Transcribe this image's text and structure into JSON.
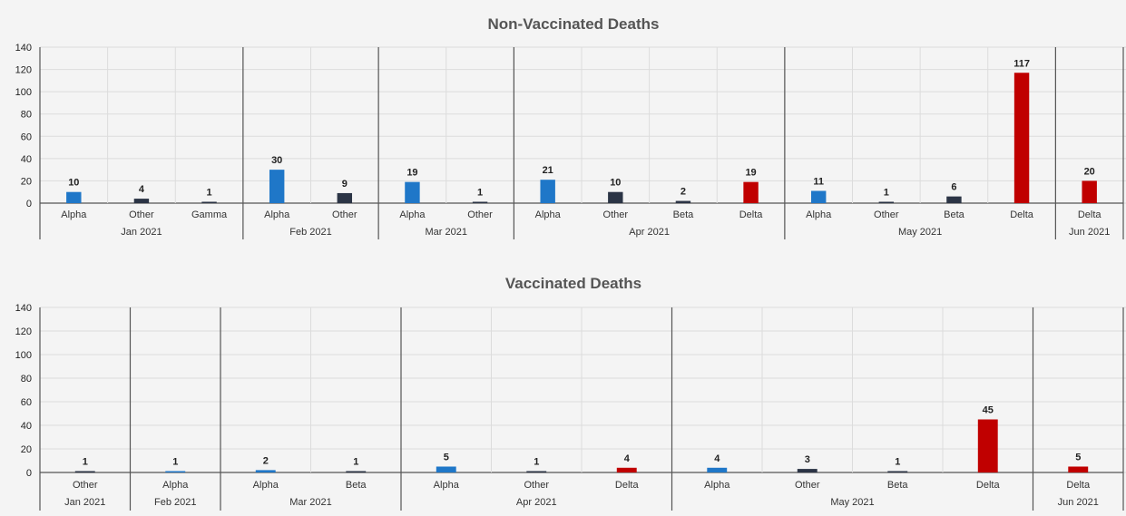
{
  "colors": {
    "Alpha": "#1f77c8",
    "Other": "#2b3445",
    "Gamma": "#2b3445",
    "Beta": "#2b3445",
    "Delta": "#c00000"
  },
  "chart_data": [
    {
      "type": "bar",
      "title": "Non-Vaccinated Deaths",
      "ylim": [
        0,
        140
      ],
      "yticks": [
        0,
        20,
        40,
        60,
        80,
        100,
        120,
        140
      ],
      "grid": true,
      "groups": [
        {
          "label": "Jan 2021",
          "bars": [
            {
              "category": "Alpha",
              "value": 10
            },
            {
              "category": "Other",
              "value": 4
            },
            {
              "category": "Gamma",
              "value": 1
            }
          ]
        },
        {
          "label": "Feb 2021",
          "bars": [
            {
              "category": "Alpha",
              "value": 30
            },
            {
              "category": "Other",
              "value": 9
            }
          ]
        },
        {
          "label": "Mar 2021",
          "bars": [
            {
              "category": "Alpha",
              "value": 19
            },
            {
              "category": "Other",
              "value": 1
            }
          ]
        },
        {
          "label": "Apr 2021",
          "bars": [
            {
              "category": "Alpha",
              "value": 21
            },
            {
              "category": "Other",
              "value": 10
            },
            {
              "category": "Beta",
              "value": 2
            },
            {
              "category": "Delta",
              "value": 19
            }
          ]
        },
        {
          "label": "May 2021",
          "bars": [
            {
              "category": "Alpha",
              "value": 11
            },
            {
              "category": "Other",
              "value": 1
            },
            {
              "category": "Beta",
              "value": 6
            },
            {
              "category": "Delta",
              "value": 117
            }
          ]
        },
        {
          "label": "Jun 2021",
          "bars": [
            {
              "category": "Delta",
              "value": 20
            }
          ]
        }
      ]
    },
    {
      "type": "bar",
      "title": "Vaccinated Deaths",
      "ylim": [
        0,
        140
      ],
      "yticks": [
        0,
        20,
        40,
        60,
        80,
        100,
        120,
        140
      ],
      "grid": true,
      "groups": [
        {
          "label": "Jan 2021",
          "bars": [
            {
              "category": "Other",
              "value": 1
            }
          ]
        },
        {
          "label": "Feb 2021",
          "bars": [
            {
              "category": "Alpha",
              "value": 1
            }
          ]
        },
        {
          "label": "Mar 2021",
          "bars": [
            {
              "category": "Alpha",
              "value": 2
            },
            {
              "category": "Beta",
              "value": 1
            }
          ]
        },
        {
          "label": "Apr 2021",
          "bars": [
            {
              "category": "Alpha",
              "value": 5
            },
            {
              "category": "Other",
              "value": 1
            },
            {
              "category": "Delta",
              "value": 4
            }
          ]
        },
        {
          "label": "May 2021",
          "bars": [
            {
              "category": "Alpha",
              "value": 4
            },
            {
              "category": "Other",
              "value": 3
            },
            {
              "category": "Beta",
              "value": 1
            },
            {
              "category": "Delta",
              "value": 45
            }
          ]
        },
        {
          "label": "Jun 2021",
          "bars": [
            {
              "category": "Delta",
              "value": 5
            }
          ]
        }
      ]
    }
  ]
}
